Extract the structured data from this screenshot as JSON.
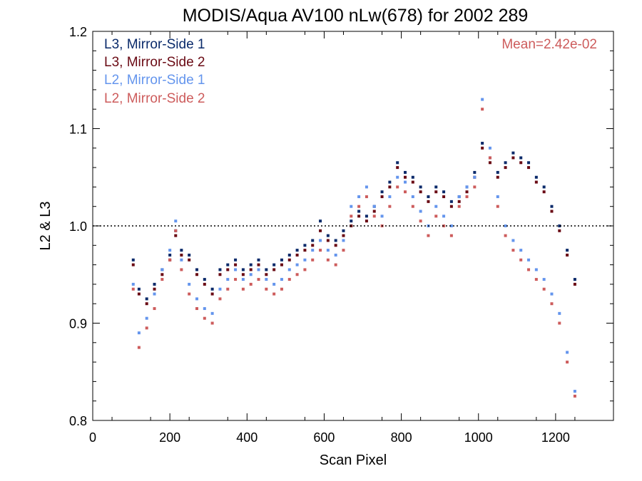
{
  "chart_data": {
    "type": "scatter",
    "title": "MODIS/Aqua AV100 nLw(678) for 2002 289",
    "xlabel": "Scan Pixel",
    "ylabel": "L2 & L3",
    "xlim": [
      0,
      1350
    ],
    "ylim": [
      0.8,
      1.2
    ],
    "xticks": [
      "0",
      "200",
      "400",
      "600",
      "800",
      "1000",
      "1200"
    ],
    "xtick_values": [
      0,
      200,
      400,
      600,
      800,
      1000,
      1200
    ],
    "yticks": [
      "0.8",
      "0.9",
      "1.0",
      "1.1",
      "1.2"
    ],
    "ytick_values": [
      0.8,
      0.9,
      1.0,
      1.1,
      1.2
    ],
    "reference_line": 1.0,
    "annotation": "Mean=2.42e-02",
    "annotation_color": "#cd5c5c",
    "grid": false,
    "legend_position": "top-left",
    "series": [
      {
        "name": "L3, Mirror-Side 1",
        "color": "#0a2a6a",
        "x": [
          105,
          120,
          140,
          160,
          180,
          200,
          215,
          230,
          250,
          270,
          290,
          310,
          330,
          350,
          370,
          390,
          410,
          430,
          450,
          470,
          490,
          510,
          530,
          550,
          570,
          590,
          610,
          630,
          650,
          670,
          690,
          710,
          730,
          750,
          770,
          790,
          810,
          830,
          850,
          870,
          890,
          910,
          930,
          950,
          970,
          990,
          1010,
          1030,
          1050,
          1070,
          1090,
          1110,
          1130,
          1150,
          1170,
          1190,
          1210,
          1230,
          1250
        ],
        "y": [
          0.965,
          0.935,
          0.925,
          0.94,
          0.955,
          0.97,
          0.995,
          0.975,
          0.97,
          0.955,
          0.945,
          0.935,
          0.955,
          0.96,
          0.965,
          0.955,
          0.96,
          0.965,
          0.955,
          0.96,
          0.965,
          0.97,
          0.975,
          0.98,
          0.985,
          1.005,
          0.99,
          0.985,
          0.995,
          1.005,
          1.015,
          1.01,
          1.02,
          1.035,
          1.045,
          1.065,
          1.055,
          1.05,
          1.04,
          1.03,
          1.04,
          1.035,
          1.025,
          1.03,
          1.04,
          1.055,
          1.085,
          1.07,
          1.055,
          1.065,
          1.075,
          1.07,
          1.065,
          1.05,
          1.04,
          1.02,
          1.0,
          0.975,
          0.945
        ]
      },
      {
        "name": "L3, Mirror-Side 2",
        "color": "#6a0a14",
        "x": [
          105,
          120,
          140,
          160,
          180,
          200,
          215,
          230,
          250,
          270,
          290,
          310,
          330,
          350,
          370,
          390,
          410,
          430,
          450,
          470,
          490,
          510,
          530,
          550,
          570,
          590,
          610,
          630,
          650,
          670,
          690,
          710,
          730,
          750,
          770,
          790,
          810,
          830,
          850,
          870,
          890,
          910,
          930,
          950,
          970,
          990,
          1010,
          1030,
          1050,
          1070,
          1090,
          1110,
          1130,
          1150,
          1170,
          1190,
          1210,
          1230,
          1250
        ],
        "y": [
          0.96,
          0.93,
          0.92,
          0.935,
          0.95,
          0.965,
          0.99,
          0.97,
          0.965,
          0.95,
          0.94,
          0.93,
          0.95,
          0.955,
          0.96,
          0.95,
          0.955,
          0.96,
          0.95,
          0.955,
          0.96,
          0.965,
          0.97,
          0.975,
          0.98,
          0.995,
          0.985,
          0.98,
          0.99,
          1.0,
          1.01,
          1.005,
          1.015,
          1.03,
          1.04,
          1.06,
          1.05,
          1.045,
          1.035,
          1.025,
          1.035,
          1.03,
          1.02,
          1.025,
          1.035,
          1.05,
          1.08,
          1.065,
          1.05,
          1.06,
          1.07,
          1.065,
          1.06,
          1.045,
          1.035,
          1.015,
          0.995,
          0.97,
          0.94
        ]
      },
      {
        "name": "L2, Mirror-Side 1",
        "color": "#6495ed",
        "x": [
          105,
          120,
          140,
          160,
          180,
          200,
          215,
          230,
          250,
          270,
          290,
          310,
          330,
          350,
          370,
          390,
          410,
          430,
          450,
          470,
          490,
          510,
          530,
          550,
          570,
          590,
          610,
          630,
          650,
          670,
          690,
          710,
          730,
          750,
          770,
          790,
          810,
          830,
          850,
          870,
          890,
          910,
          930,
          950,
          970,
          990,
          1010,
          1030,
          1050,
          1070,
          1090,
          1110,
          1130,
          1150,
          1170,
          1190,
          1210,
          1230,
          1250
        ],
        "y": [
          0.94,
          0.89,
          0.905,
          0.93,
          0.955,
          0.975,
          1.005,
          0.965,
          0.94,
          0.925,
          0.915,
          0.91,
          0.935,
          0.945,
          0.955,
          0.945,
          0.95,
          0.955,
          0.945,
          0.94,
          0.945,
          0.955,
          0.96,
          0.965,
          0.975,
          0.985,
          0.975,
          0.97,
          0.985,
          1.02,
          1.03,
          1.04,
          1.02,
          1.01,
          1.03,
          1.05,
          1.045,
          1.03,
          1.015,
          1.0,
          1.02,
          1.01,
          1.0,
          1.03,
          1.04,
          1.05,
          1.13,
          1.08,
          1.03,
          1.0,
          0.985,
          0.975,
          0.965,
          0.955,
          0.945,
          0.93,
          0.91,
          0.87,
          0.83
        ]
      },
      {
        "name": "L2, Mirror-Side 2",
        "color": "#cd5c5c",
        "x": [
          105,
          120,
          140,
          160,
          180,
          200,
          215,
          230,
          250,
          270,
          290,
          310,
          330,
          350,
          370,
          390,
          410,
          430,
          450,
          470,
          490,
          510,
          530,
          550,
          570,
          590,
          610,
          630,
          650,
          670,
          690,
          710,
          730,
          750,
          770,
          790,
          810,
          830,
          850,
          870,
          890,
          910,
          930,
          950,
          970,
          990,
          1010,
          1030,
          1050,
          1070,
          1090,
          1110,
          1130,
          1150,
          1170,
          1190,
          1210,
          1230,
          1250
        ],
        "y": [
          0.935,
          0.875,
          0.895,
          0.915,
          0.945,
          0.965,
          0.995,
          0.955,
          0.93,
          0.915,
          0.905,
          0.9,
          0.925,
          0.935,
          0.945,
          0.935,
          0.94,
          0.945,
          0.935,
          0.93,
          0.935,
          0.945,
          0.95,
          0.955,
          0.965,
          0.975,
          0.965,
          0.96,
          0.975,
          1.01,
          1.02,
          1.03,
          1.01,
          1.0,
          1.02,
          1.04,
          1.035,
          1.02,
          1.005,
          0.99,
          1.01,
          1.0,
          0.99,
          1.02,
          1.03,
          1.04,
          1.12,
          1.07,
          1.02,
          0.99,
          0.975,
          0.965,
          0.955,
          0.945,
          0.935,
          0.92,
          0.9,
          0.86,
          0.825
        ]
      }
    ]
  }
}
